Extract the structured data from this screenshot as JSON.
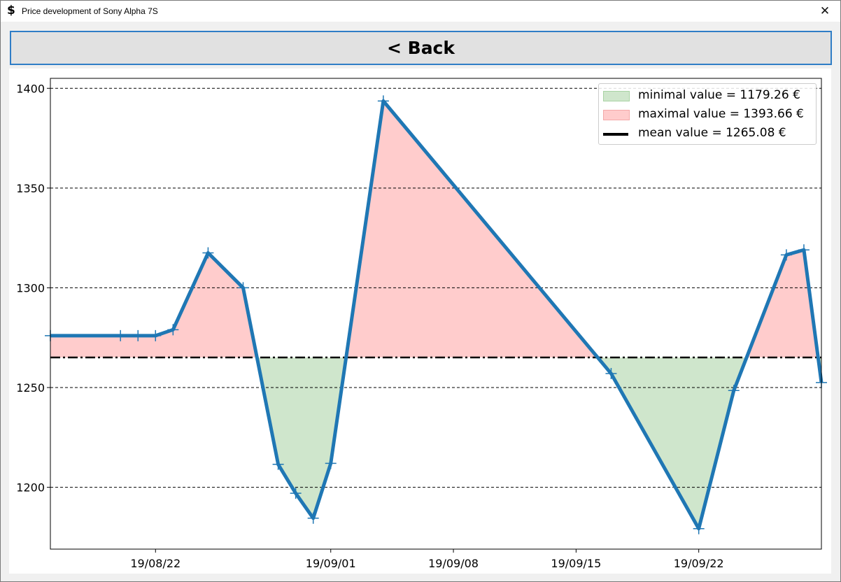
{
  "window": {
    "title": "Price development of Sony Alpha 7S",
    "icon": "dollar-icon",
    "close_glyph": "✕"
  },
  "back_button": {
    "label": "< Back"
  },
  "colors": {
    "line": "#1f77b4",
    "above_fill": "#ffcccc",
    "below_fill": "#cfe6cc",
    "mean_line": "#000000"
  },
  "legend": {
    "items": [
      {
        "label": "minimal value = 1179.26 €"
      },
      {
        "label": "maximal value = 1393.66 €"
      },
      {
        "label": "mean value = 1265.08 €"
      }
    ],
    "placement": "top-right"
  },
  "chart_data": {
    "type": "line",
    "x_ticks": [
      "19/08/22",
      "19/09/01",
      "19/09/08",
      "19/09/15",
      "19/09/22"
    ],
    "y_ticks": [
      "1200",
      "1250",
      "1300",
      "1350",
      "1400"
    ],
    "x_range": [
      "2019-08-16",
      "2019-09-29"
    ],
    "ylim": [
      1169,
      1405
    ],
    "mean": 1265.08,
    "min": 1179.26,
    "max": 1393.66,
    "grid": "horizontal dashed",
    "series": [
      {
        "points": [
          {
            "x": "2019-08-16",
            "y": 1276
          },
          {
            "x": "2019-08-20",
            "y": 1276
          },
          {
            "x": "2019-08-21",
            "y": 1276
          },
          {
            "x": "2019-08-22",
            "y": 1276
          },
          {
            "x": "2019-08-23",
            "y": 1279
          },
          {
            "x": "2019-08-25",
            "y": 1317.5
          },
          {
            "x": "2019-08-27",
            "y": 1300
          },
          {
            "x": "2019-08-29",
            "y": 1211.5
          },
          {
            "x": "2019-08-30",
            "y": 1197
          },
          {
            "x": "2019-08-31",
            "y": 1184.5
          },
          {
            "x": "2019-09-01",
            "y": 1212
          },
          {
            "x": "2019-09-04",
            "y": 1393.66
          },
          {
            "x": "2019-09-17",
            "y": 1257
          },
          {
            "x": "2019-09-22",
            "y": 1179.26
          },
          {
            "x": "2019-09-24",
            "y": 1248.5
          },
          {
            "x": "2019-09-27",
            "y": 1316.5
          },
          {
            "x": "2019-09-28",
            "y": 1319
          },
          {
            "x": "2019-09-29",
            "y": 1252.5
          }
        ]
      }
    ]
  }
}
